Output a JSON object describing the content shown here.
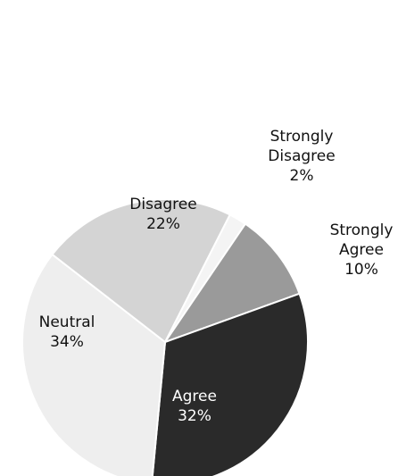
{
  "chart_data": {
    "type": "pie",
    "categories": [
      "Strongly Disagree",
      "Strongly Agree",
      "Agree",
      "Neutral",
      "Disagree"
    ],
    "values": [
      2,
      10,
      32,
      34,
      22
    ],
    "value_labels": [
      "2%",
      "10%",
      "32%",
      "34%",
      "22%"
    ],
    "colors": [
      "#f4f4f4",
      "#9a9a9a",
      "#2a2a2a",
      "#eeeeee",
      "#d4d4d4"
    ]
  }
}
